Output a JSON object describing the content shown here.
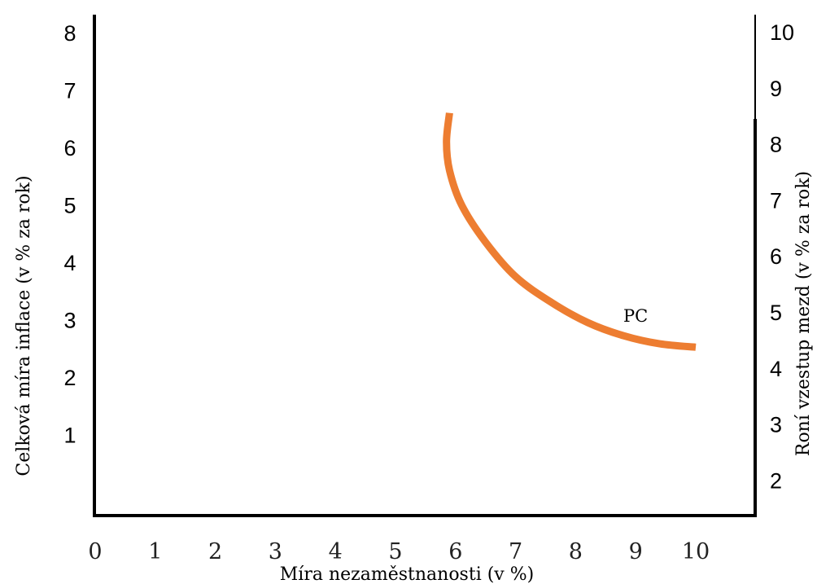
{
  "chart_data": {
    "type": "line",
    "xlabel": "Míra nezaměstnanosti (v %)",
    "ylabel_left": "Celková míra inflace (v % za rok)",
    "ylabel_right": "Roní vzestup mezd (v % za rok)",
    "x_ticks": [
      "0",
      "1",
      "2",
      "3",
      "4",
      "5",
      "6",
      "7",
      "8",
      "9",
      "10"
    ],
    "y_left_ticks": [
      "1",
      "2",
      "3",
      "4",
      "5",
      "6",
      "7",
      "8"
    ],
    "y_right_ticks": [
      "2",
      "3",
      "4",
      "5",
      "6",
      "7",
      "8",
      "9",
      "10"
    ],
    "xlim": [
      0,
      11
    ],
    "ylim_left": [
      0,
      8.5
    ],
    "grid": false,
    "legend": "none",
    "series": [
      {
        "name": "PC",
        "color": "#ED7D31",
        "x": [
          5.9,
          5.85,
          5.9,
          6.1,
          6.5,
          7.0,
          7.6,
          8.2,
          8.8,
          9.4,
          10.0
        ],
        "y": [
          6.6,
          6.1,
          5.6,
          5.0,
          4.35,
          3.75,
          3.3,
          2.95,
          2.72,
          2.58,
          2.52
        ]
      }
    ]
  }
}
